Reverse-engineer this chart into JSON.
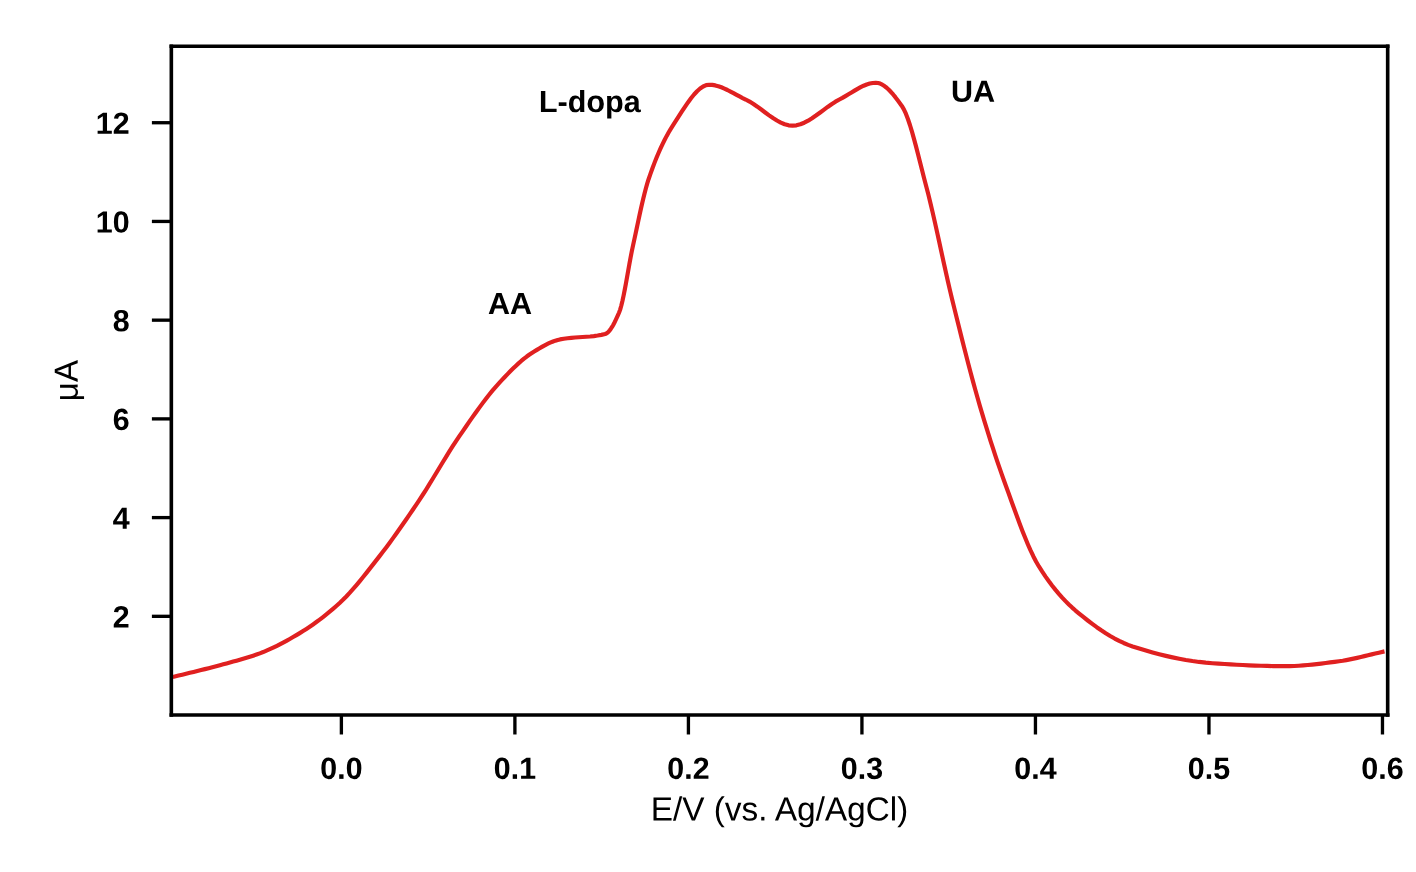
{
  "chart_data": {
    "type": "line",
    "xlabel": "E/V (vs. Ag/AgCl)",
    "ylabel": "μA",
    "x": [
      -0.096,
      -0.07,
      -0.047,
      -0.024,
      -0.001,
      0.022,
      0.045,
      0.068,
      0.091,
      0.11,
      0.126,
      0.152,
      0.16,
      0.168,
      0.177,
      0.191,
      0.212,
      0.233,
      0.26,
      0.287,
      0.308,
      0.323,
      0.337,
      0.352,
      0.368,
      0.383,
      0.402,
      0.425,
      0.456,
      0.502,
      0.544,
      0.575,
      0.6
    ],
    "series": [
      {
        "color": "#e02020",
        "values": [
          0.78,
          1.01,
          1.25,
          1.66,
          2.27,
          3.22,
          4.36,
          5.65,
          6.73,
          7.34,
          7.61,
          7.72,
          8.15,
          9.5,
          10.85,
          11.94,
          12.77,
          12.47,
          11.94,
          12.47,
          12.81,
          12.34,
          10.72,
          8.42,
          6.26,
          4.64,
          3.01,
          2.06,
          1.39,
          1.05,
          0.99,
          1.09,
          1.28
        ]
      }
    ],
    "annotations": [
      {
        "text": "AA",
        "x": 0.126,
        "y": 7.61
      },
      {
        "text": "L-dopa",
        "x": 0.212,
        "y": 12.77
      },
      {
        "text": "UA",
        "x": 0.308,
        "y": 12.81
      }
    ],
    "xlim": [
      -0.098,
      0.603
    ],
    "ylim": [
      0.0,
      13.55
    ],
    "xticks": [
      {
        "value": 0,
        "label": "0.0"
      },
      0.1,
      0.2,
      0.3,
      0.4,
      0.5,
      0.6
    ],
    "yticks": [
      2,
      4,
      6,
      8,
      10,
      12
    ],
    "grid": false,
    "marker": "none",
    "line_style": "solid"
  }
}
